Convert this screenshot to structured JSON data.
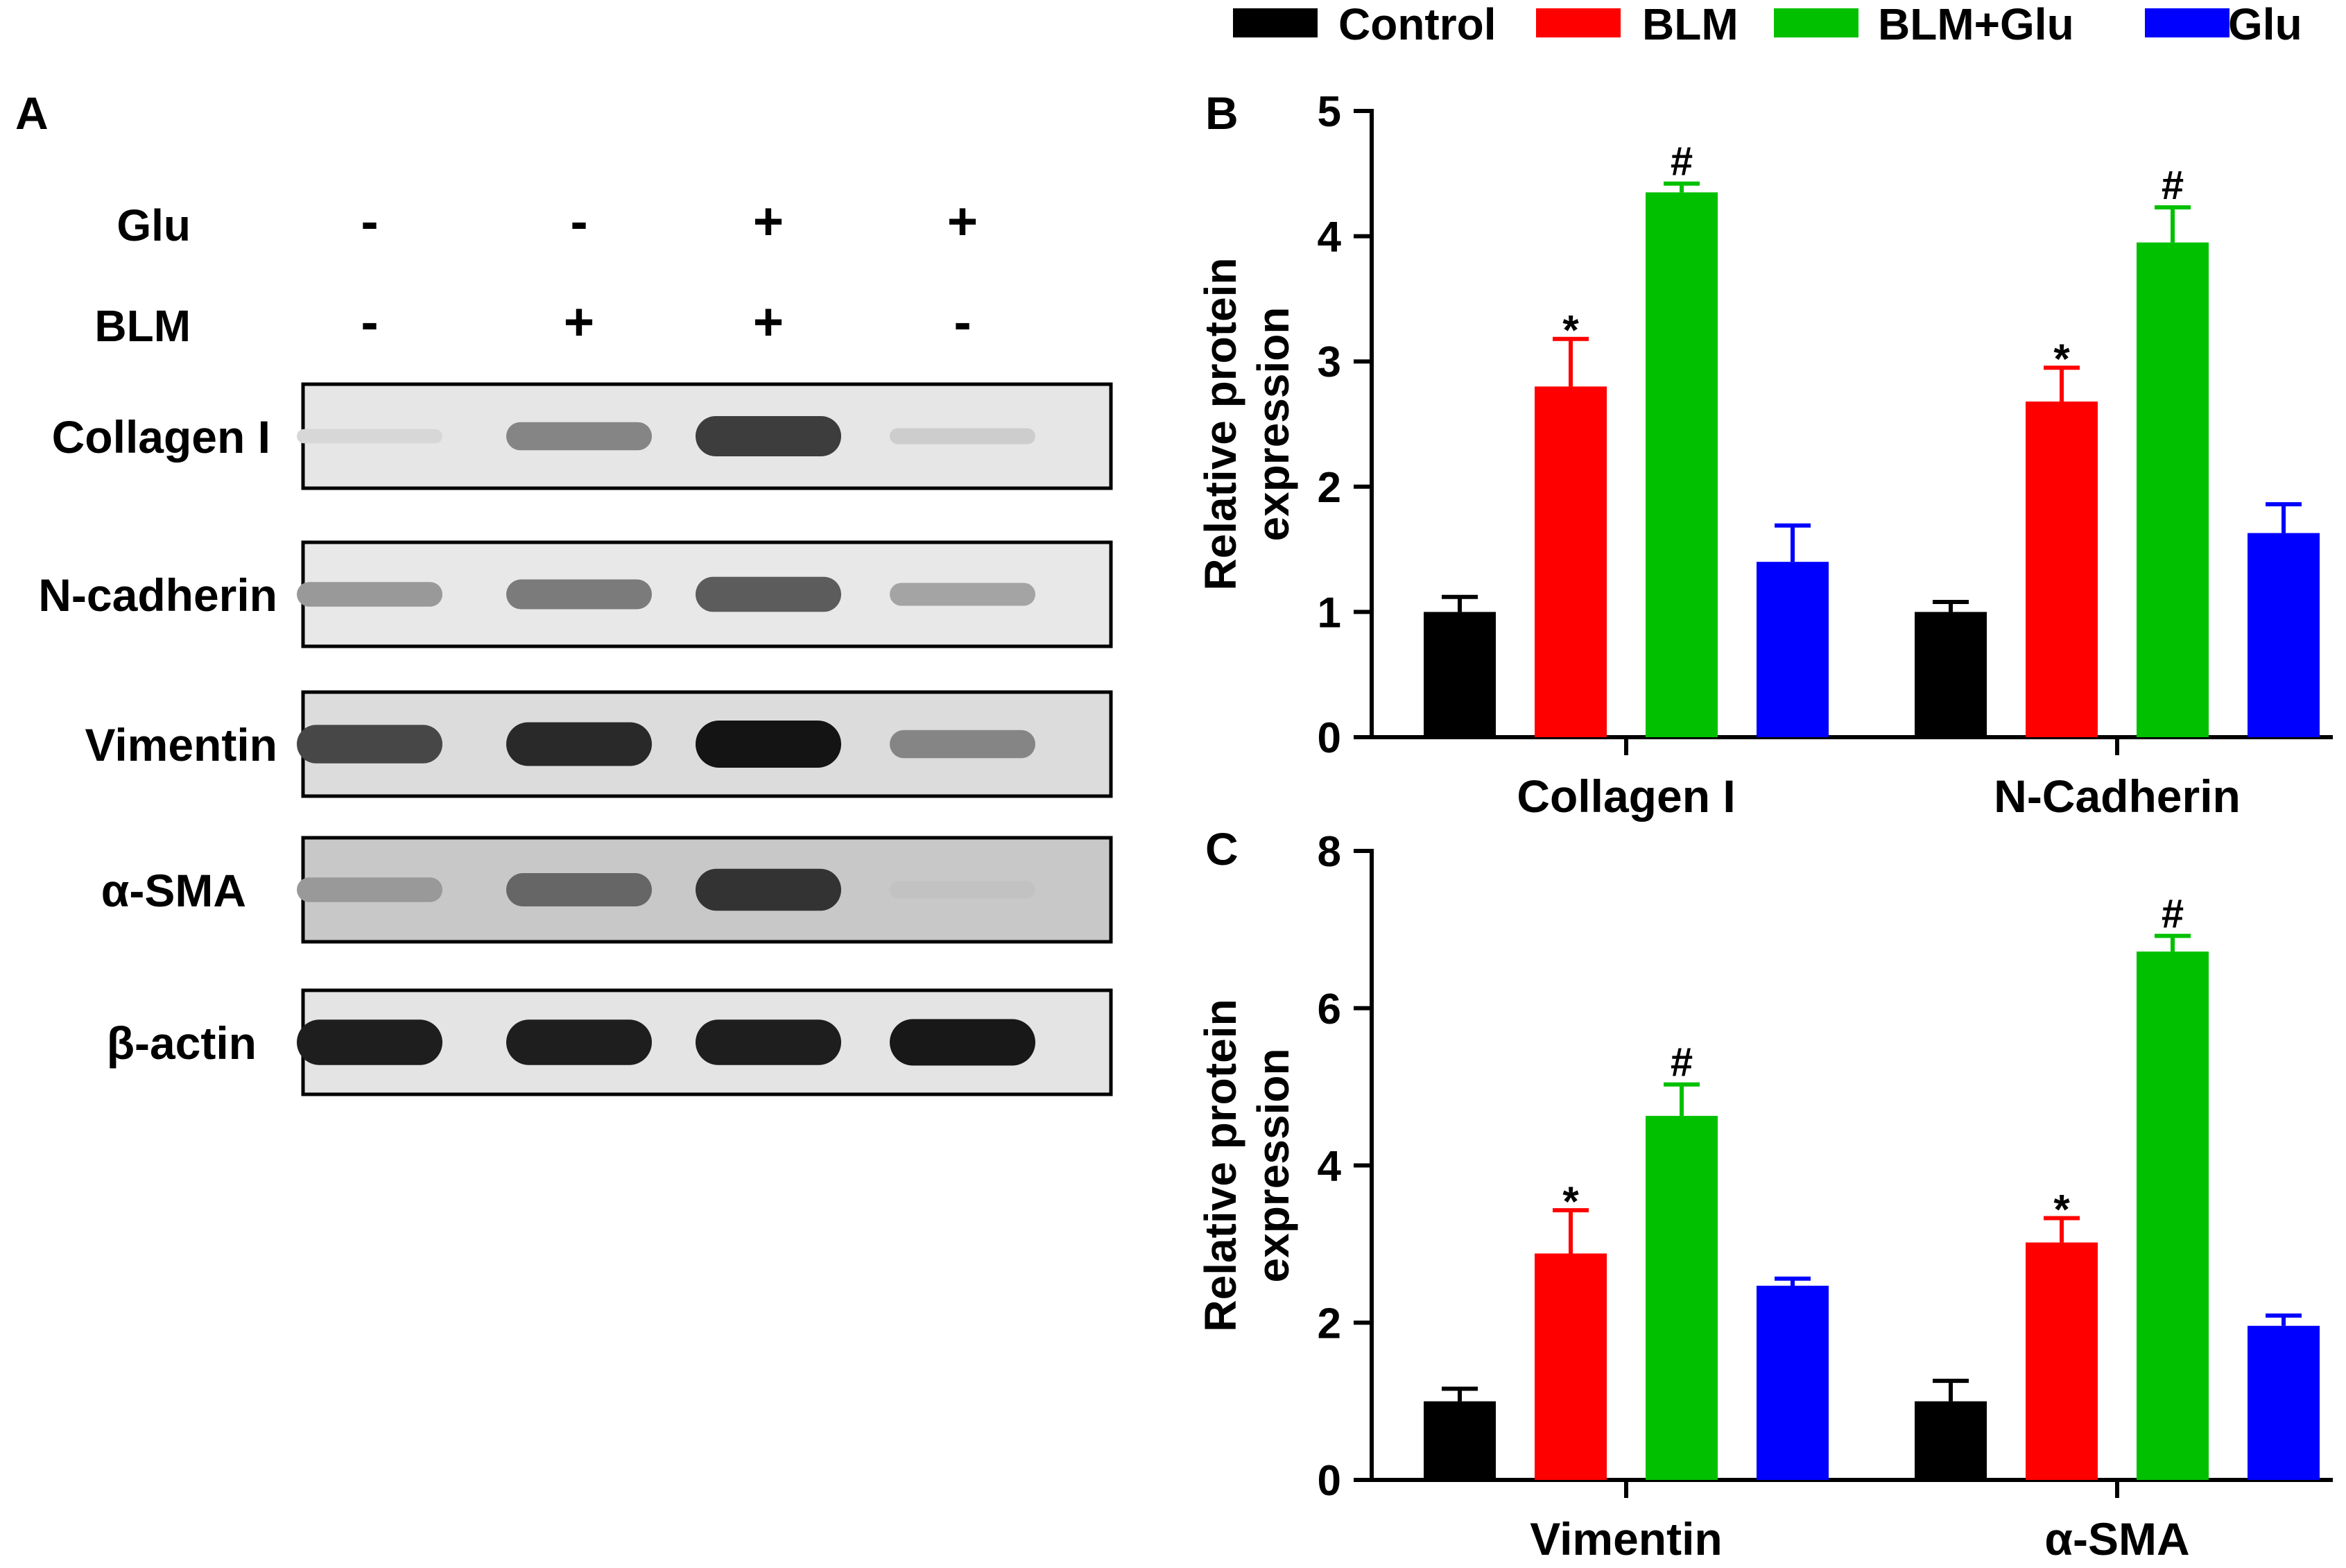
{
  "legend": [
    {
      "name": "Control",
      "color": "#000000"
    },
    {
      "name": "BLM",
      "color": "#ff0000"
    },
    {
      "name": "BLM+Glu",
      "color": "#00c000"
    },
    {
      "name": "Glu",
      "color": "#0000ff"
    }
  ],
  "panel_a": {
    "letter": "A",
    "conditions": [
      {
        "label": "Glu",
        "values": [
          "-",
          "-",
          "+",
          "+"
        ]
      },
      {
        "label": "BLM",
        "values": [
          "-",
          "+",
          "+",
          "-"
        ]
      }
    ],
    "blots": [
      {
        "label": "Collagen I",
        "intensity": [
          0.05,
          0.45,
          0.8,
          0.1
        ],
        "bg": "#e6e6e6"
      },
      {
        "label": "N-cadherin",
        "intensity": [
          0.35,
          0.5,
          0.65,
          0.3
        ],
        "bg": "#e8e8e8"
      },
      {
        "label": "Vimentin",
        "intensity": [
          0.75,
          0.9,
          1.0,
          0.45
        ],
        "bg": "#dcdcdc"
      },
      {
        "label": "α-SMA",
        "intensity": [
          0.35,
          0.6,
          0.85,
          0.15
        ],
        "bg": "#c8c8c8"
      },
      {
        "label": "β-actin",
        "intensity": [
          0.95,
          0.95,
          0.95,
          0.98
        ],
        "bg": "#e4e4e4"
      }
    ]
  },
  "chart_data": [
    {
      "type": "bar",
      "panel": "B",
      "categories": [
        "Collagen I",
        "N-Cadherin"
      ],
      "ylabel": [
        "Relative protein",
        "expression"
      ],
      "ylim": [
        0,
        5
      ],
      "yticks": [
        0,
        1,
        2,
        3,
        4,
        5
      ],
      "series": [
        {
          "name": "Control",
          "values": [
            1.0,
            1.0
          ],
          "errors": [
            0.12,
            0.08
          ],
          "marks": [
            "",
            ""
          ]
        },
        {
          "name": "BLM",
          "values": [
            2.8,
            2.68
          ],
          "errors": [
            0.38,
            0.27
          ],
          "marks": [
            "*",
            "*"
          ]
        },
        {
          "name": "BLM+Glu",
          "values": [
            4.35,
            3.95
          ],
          "errors": [
            0.07,
            0.28
          ],
          "marks": [
            "#",
            "#"
          ]
        },
        {
          "name": "Glu",
          "values": [
            1.4,
            1.63
          ],
          "errors": [
            0.29,
            0.23
          ],
          "marks": [
            "",
            ""
          ]
        }
      ]
    },
    {
      "type": "bar",
      "panel": "C",
      "categories": [
        "Vimentin",
        "α-SMA"
      ],
      "ylabel": [
        "Relative protein",
        "expression"
      ],
      "ylim": [
        0,
        8
      ],
      "yticks": [
        0,
        2,
        4,
        6,
        8
      ],
      "series": [
        {
          "name": "Control",
          "values": [
            1.0,
            1.0
          ],
          "errors": [
            0.16,
            0.26
          ],
          "marks": [
            "",
            ""
          ]
        },
        {
          "name": "BLM",
          "values": [
            2.88,
            3.02
          ],
          "errors": [
            0.55,
            0.31
          ],
          "marks": [
            "*",
            "*"
          ]
        },
        {
          "name": "BLM+Glu",
          "values": [
            4.63,
            6.72
          ],
          "errors": [
            0.4,
            0.2
          ],
          "marks": [
            "#",
            "#"
          ]
        },
        {
          "name": "Glu",
          "values": [
            2.47,
            1.96
          ],
          "errors": [
            0.09,
            0.13
          ],
          "marks": [
            "",
            ""
          ]
        }
      ]
    }
  ]
}
